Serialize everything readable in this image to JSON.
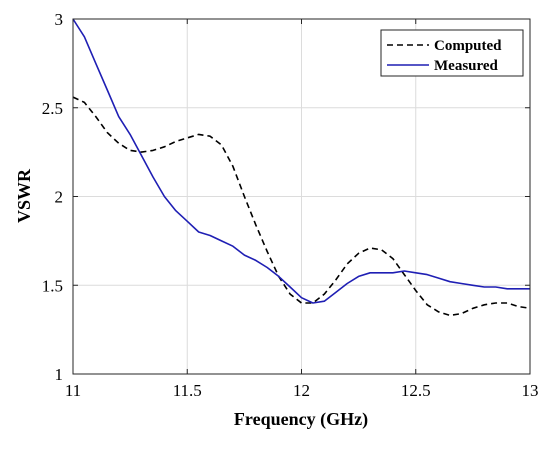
{
  "chart_data": {
    "type": "line",
    "title": "",
    "xlabel": "Frequency (GHz)",
    "ylabel": "VSWR",
    "xlim": [
      11,
      13
    ],
    "ylim": [
      1,
      3
    ],
    "xticks": [
      11,
      11.5,
      12,
      12.5,
      13
    ],
    "xtick_labels": [
      "11",
      "11.5",
      "12",
      "12.5",
      "13"
    ],
    "yticks": [
      1,
      1.5,
      2,
      2.5,
      3
    ],
    "ytick_labels": [
      "1",
      "1.5",
      "2",
      "2.5",
      "3"
    ],
    "grid": true,
    "legend_position": "top-right",
    "series": [
      {
        "name": "Computed",
        "color": "#000000",
        "style": "dashed",
        "x": [
          11.0,
          11.05,
          11.1,
          11.15,
          11.2,
          11.25,
          11.3,
          11.35,
          11.4,
          11.45,
          11.5,
          11.55,
          11.6,
          11.65,
          11.7,
          11.75,
          11.8,
          11.85,
          11.9,
          11.95,
          12.0,
          12.05,
          12.1,
          12.15,
          12.2,
          12.25,
          12.3,
          12.35,
          12.4,
          12.45,
          12.5,
          12.55,
          12.6,
          12.65,
          12.7,
          12.75,
          12.8,
          12.85,
          12.9,
          12.95,
          13.0
        ],
        "y": [
          2.56,
          2.53,
          2.45,
          2.36,
          2.3,
          2.26,
          2.25,
          2.26,
          2.28,
          2.31,
          2.33,
          2.35,
          2.34,
          2.29,
          2.17,
          2.0,
          1.84,
          1.69,
          1.55,
          1.45,
          1.4,
          1.4,
          1.45,
          1.53,
          1.62,
          1.68,
          1.71,
          1.7,
          1.65,
          1.56,
          1.47,
          1.39,
          1.35,
          1.33,
          1.34,
          1.37,
          1.39,
          1.4,
          1.4,
          1.38,
          1.37
        ]
      },
      {
        "name": "Measured",
        "color": "#1f1fb4",
        "style": "solid",
        "x": [
          11.0,
          11.05,
          11.1,
          11.15,
          11.2,
          11.25,
          11.3,
          11.35,
          11.4,
          11.45,
          11.5,
          11.55,
          11.6,
          11.65,
          11.7,
          11.75,
          11.8,
          11.85,
          11.9,
          11.95,
          12.0,
          12.05,
          12.1,
          12.15,
          12.2,
          12.25,
          12.3,
          12.35,
          12.4,
          12.45,
          12.5,
          12.55,
          12.6,
          12.65,
          12.7,
          12.75,
          12.8,
          12.85,
          12.9,
          12.95,
          13.0
        ],
        "y": [
          3.0,
          2.9,
          2.75,
          2.6,
          2.45,
          2.35,
          2.23,
          2.11,
          2.0,
          1.92,
          1.86,
          1.8,
          1.78,
          1.75,
          1.72,
          1.67,
          1.64,
          1.6,
          1.55,
          1.49,
          1.43,
          1.4,
          1.41,
          1.46,
          1.51,
          1.55,
          1.57,
          1.57,
          1.57,
          1.58,
          1.57,
          1.56,
          1.54,
          1.52,
          1.51,
          1.5,
          1.49,
          1.49,
          1.48,
          1.48,
          1.48
        ]
      }
    ]
  }
}
